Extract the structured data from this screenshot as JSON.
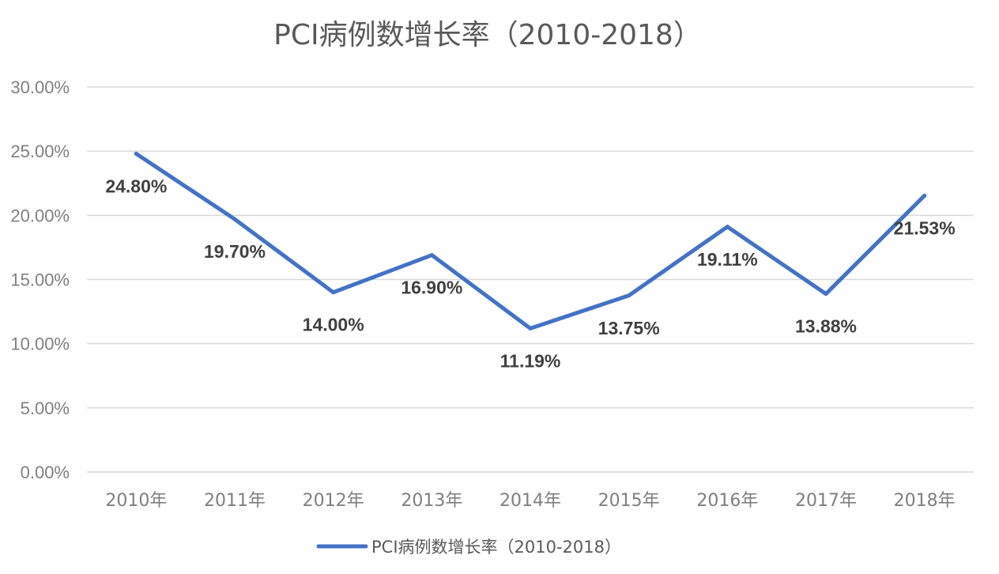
{
  "chart_data": {
    "type": "line",
    "title": "PCI病例数增长率（2010-2018）",
    "categories": [
      "2010年",
      "2011年",
      "2012年",
      "2013年",
      "2014年",
      "2015年",
      "2016年",
      "2017年",
      "2018年"
    ],
    "series": [
      {
        "name": "PCI病例数增长率（2010-2018）",
        "values": [
          24.8,
          19.7,
          14.0,
          16.9,
          11.19,
          13.75,
          19.11,
          13.88,
          21.53
        ],
        "labels": [
          "24.80%",
          "19.70%",
          "14.00%",
          "16.90%",
          "11.19%",
          "13.75%",
          "19.11%",
          "13.88%",
          "21.53%"
        ],
        "color": "#4472c4"
      }
    ],
    "ylim": [
      0,
      30
    ],
    "yticks": [
      "0.00%",
      "5.00%",
      "10.00%",
      "15.00%",
      "20.00%",
      "25.00%",
      "30.00%"
    ],
    "xlabel": "",
    "ylabel": "",
    "grid": true,
    "legend_position": "bottom"
  },
  "colors": {
    "line": "#4472c4",
    "grid": "#d9d9d9",
    "axis_text": "#7f7f7f",
    "title_text": "#595959",
    "label_text": "#404040"
  }
}
